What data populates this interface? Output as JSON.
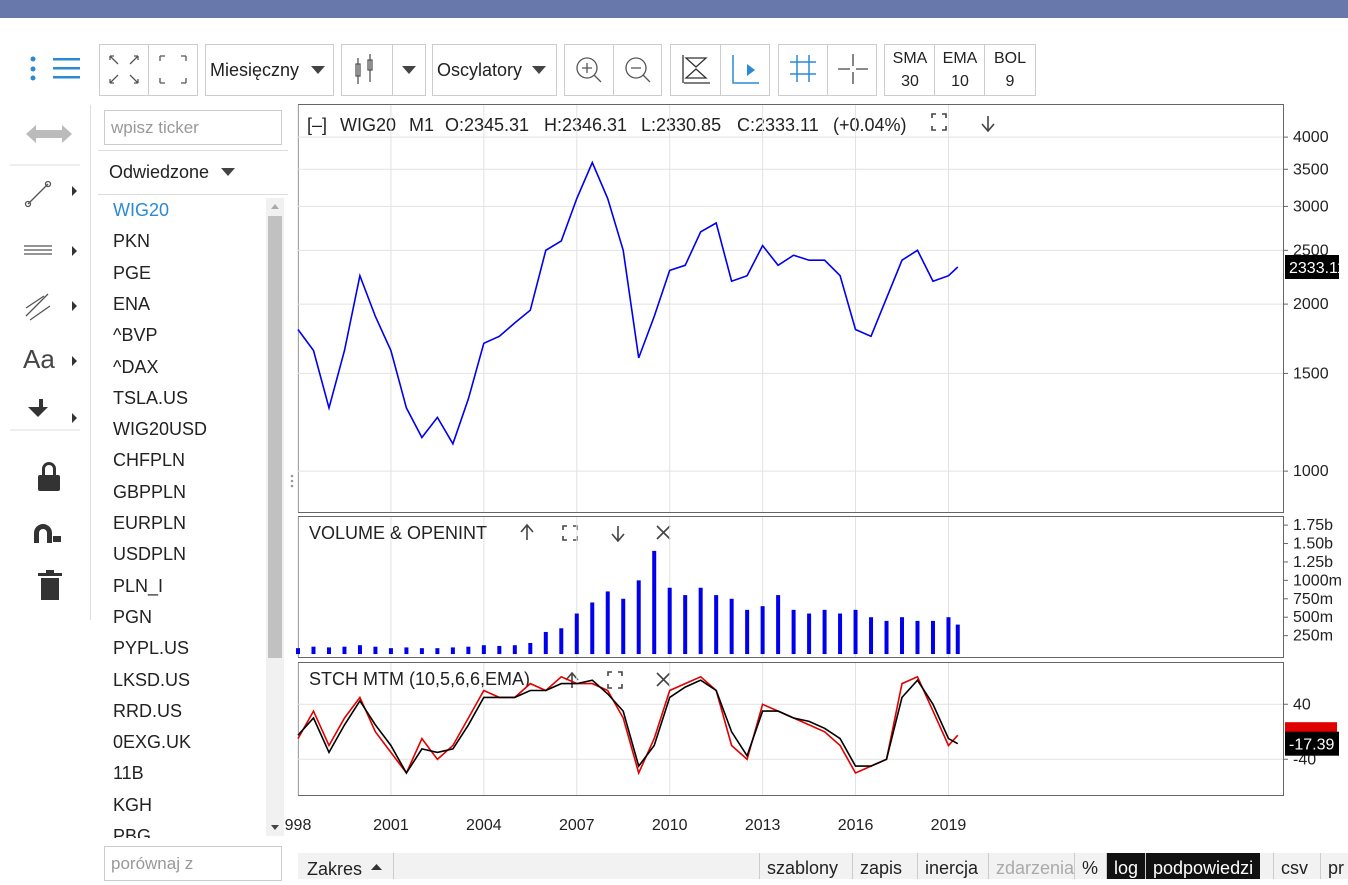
{
  "toolbar": {
    "interval": "Miesięczny",
    "oscillators": "Oscylatory",
    "indicators": [
      {
        "name": "SMA",
        "param": "30"
      },
      {
        "name": "EMA",
        "param": "10"
      },
      {
        "name": "BOL",
        "param": "9"
      }
    ]
  },
  "tools": {
    "text_tool": "Aa"
  },
  "sidebar": {
    "ticker_placeholder": "wpisz ticker",
    "visited": "Odwiedzone",
    "tickers": [
      "WIG20",
      "PKN",
      "PGE",
      "ENA",
      "^BVP",
      "^DAX",
      "TSLA.US",
      "WIG20USD",
      "CHFPLN",
      "GBPPLN",
      "EURPLN",
      "USDPLN",
      "PLN_I",
      "PGN",
      "PYPL.US",
      "LKSD.US",
      "RRD.US",
      "0EXG.UK",
      "11B",
      "KGH",
      "PBG"
    ],
    "compare_placeholder": "porównaj z"
  },
  "price_header": {
    "collapse": "[–]",
    "ticker": "WIG20",
    "interval": "M1",
    "open": "O:2345.31",
    "high": "H:2346.31",
    "low": "L:2330.85",
    "close": "C:2333.11",
    "change": "(+0.04%)"
  },
  "chart_data": [
    {
      "type": "line",
      "log_scale": true,
      "grid": true,
      "color": "#0000ee",
      "x": [
        1998,
        1998.5,
        1999,
        1999.5,
        2000,
        2000.5,
        2001,
        2001.5,
        2002,
        2002.5,
        2003,
        2003.5,
        2004,
        2004.5,
        2005,
        2005.5,
        2006,
        2006.5,
        2007,
        2007.5,
        2008,
        2008.5,
        2009,
        2009.5,
        2010,
        2010.5,
        2011,
        2011.5,
        2012,
        2012.5,
        2013,
        2013.5,
        2014,
        2014.5,
        2015,
        2015.5,
        2016,
        2016.5,
        2017,
        2017.5,
        2018,
        2018.5,
        2019,
        2019.3
      ],
      "values": [
        1800,
        1650,
        1300,
        1650,
        2250,
        1900,
        1650,
        1300,
        1150,
        1250,
        1120,
        1350,
        1700,
        1750,
        1850,
        1950,
        2500,
        2600,
        3100,
        3600,
        3100,
        2500,
        1600,
        1900,
        2300,
        2350,
        2700,
        2800,
        2200,
        2250,
        2550,
        2350,
        2450,
        2400,
        2400,
        2250,
        1800,
        1750,
        2050,
        2400,
        2500,
        2200,
        2250,
        2333.11
      ],
      "xlim": [
        1998,
        2029.8
      ],
      "xticks": [
        {
          "value": 1998,
          "label": "998"
        },
        2001,
        2004,
        2007,
        2010,
        2013,
        2016,
        2019
      ],
      "ylim": [
        844,
        4570
      ],
      "yticks": [
        1000,
        1500,
        2000,
        2500,
        3000,
        3500,
        4000
      ]
    },
    {
      "type": "bar",
      "title": "VOLUME & OPENINT",
      "grid": false,
      "color": "#0000ee",
      "x": [
        1998,
        1998.5,
        1999,
        1999.5,
        2000,
        2000.5,
        2001,
        2001.5,
        2002,
        2002.5,
        2003,
        2003.5,
        2004,
        2004.5,
        2005,
        2005.5,
        2006,
        2006.5,
        2007,
        2007.5,
        2008,
        2008.5,
        2009,
        2009.5,
        2010,
        2010.5,
        2011,
        2011.5,
        2012,
        2012.5,
        2013,
        2013.5,
        2014,
        2014.5,
        2015,
        2015.5,
        2016,
        2016.5,
        2017,
        2017.5,
        2018,
        2018.5,
        2019,
        2019.3
      ],
      "values": [
        0.08,
        0.1,
        0.09,
        0.1,
        0.12,
        0.1,
        0.08,
        0.09,
        0.08,
        0.08,
        0.09,
        0.1,
        0.12,
        0.11,
        0.12,
        0.15,
        0.3,
        0.35,
        0.55,
        0.7,
        0.85,
        0.75,
        1.0,
        1.4,
        0.9,
        0.8,
        0.9,
        0.8,
        0.75,
        0.6,
        0.65,
        0.8,
        0.6,
        0.55,
        0.6,
        0.55,
        0.6,
        0.5,
        0.45,
        0.5,
        0.45,
        0.45,
        0.5,
        0.4
      ],
      "xlim": [
        1998,
        2029.8
      ],
      "ylim": [
        -0.04,
        1.86
      ],
      "yticks": [
        {
          "value": 0.25,
          "label": "250m"
        },
        {
          "value": 0.5,
          "label": "500m"
        },
        {
          "value": 0.75,
          "label": "750m"
        },
        {
          "value": 1,
          "label": "1000m"
        },
        {
          "value": 1.25,
          "label": "1.25b"
        },
        {
          "value": 1.5,
          "label": "1.50b"
        },
        {
          "value": 1.75,
          "label": "1.75b"
        }
      ]
    },
    {
      "type": "line",
      "title": "STCH MTM (10,5,6,6,EMA)",
      "grid": true,
      "x": [
        1998,
        1998.5,
        1999,
        1999.5,
        2000,
        2000.5,
        2001,
        2001.5,
        2002,
        2002.5,
        2003,
        2003.5,
        2004,
        2004.5,
        2005,
        2005.5,
        2006,
        2006.5,
        2007,
        2007.5,
        2008,
        2008.5,
        2009,
        2009.5,
        2010,
        2010.5,
        2011,
        2011.5,
        2012,
        2012.5,
        2013,
        2013.5,
        2014,
        2014.5,
        2015,
        2015.5,
        2016,
        2016.5,
        2017,
        2017.5,
        2018,
        2018.5,
        2019,
        2019.3
      ],
      "series": [
        {
          "color": "#e00000",
          "values": [
            -10,
            30,
            -20,
            20,
            50,
            0,
            -30,
            -60,
            -10,
            -40,
            -20,
            20,
            60,
            50,
            50,
            70,
            60,
            80,
            70,
            70,
            60,
            20,
            -60,
            -10,
            60,
            70,
            80,
            60,
            -20,
            -40,
            40,
            30,
            20,
            10,
            0,
            -20,
            -60,
            -50,
            -40,
            70,
            80,
            30,
            -20,
            -5
          ]
        },
        {
          "color": "#000000",
          "values": [
            -5,
            20,
            -30,
            10,
            45,
            10,
            -20,
            -60,
            -25,
            -30,
            -25,
            10,
            50,
            50,
            50,
            60,
            60,
            70,
            70,
            75,
            55,
            30,
            -50,
            -20,
            50,
            65,
            75,
            60,
            0,
            -35,
            30,
            30,
            20,
            15,
            5,
            -10,
            -50,
            -50,
            -40,
            50,
            75,
            40,
            -10,
            -17.39
          ]
        }
      ],
      "xlim": [
        1998,
        2029.8
      ],
      "ylim": [
        -92,
        100
      ],
      "yticks": [
        40,
        -40
      ]
    }
  ],
  "bottom_bar": {
    "range": "Zakres",
    "buttons": [
      {
        "label": "szablony",
        "state": "normal"
      },
      {
        "label": "zapis",
        "state": "normal"
      },
      {
        "label": "inercja",
        "state": "normal"
      },
      {
        "label": "zdarzenia",
        "state": "disabled"
      },
      {
        "label": "%",
        "state": "normal"
      },
      {
        "label": "log",
        "state": "active"
      },
      {
        "label": "podpowiedzi",
        "state": "active"
      },
      {
        "label": "csv",
        "state": "normal"
      },
      {
        "label": "pr",
        "state": "normal"
      }
    ]
  }
}
